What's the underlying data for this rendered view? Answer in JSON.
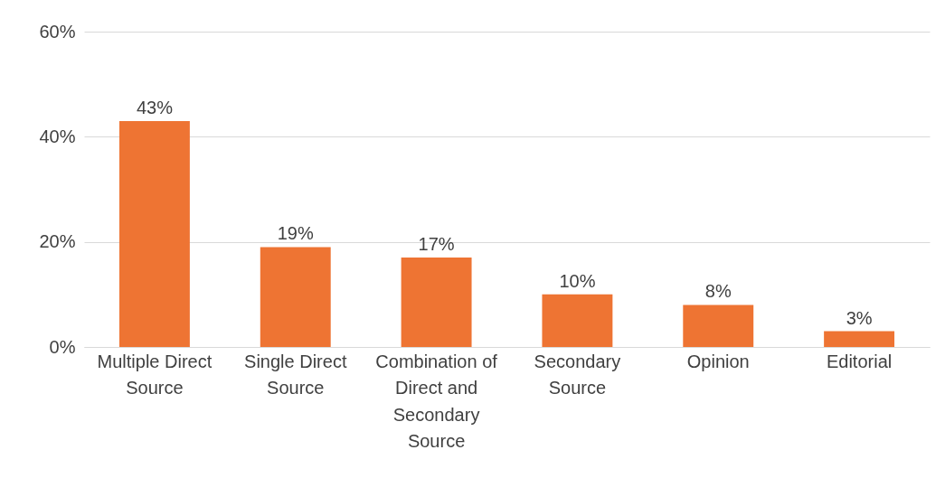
{
  "chart_data": {
    "type": "bar",
    "categories": [
      "Multiple Direct Source",
      "Single Direct Source",
      "Combination of Direct and Secondary Source",
      "Secondary Source",
      "Opinion",
      "Editorial"
    ],
    "values": [
      43,
      19,
      17,
      10,
      8,
      3
    ],
    "value_labels": [
      "43%",
      "19%",
      "17%",
      "10%",
      "8%",
      "3%"
    ],
    "color": "#ee7433",
    "ylim": [
      0,
      60
    ],
    "yticks": [
      {
        "value": 0,
        "label": "0%"
      },
      {
        "value": 20,
        "label": "20%"
      },
      {
        "value": 40,
        "label": "40%"
      },
      {
        "value": 60,
        "label": "60%"
      }
    ],
    "grid": "y"
  }
}
